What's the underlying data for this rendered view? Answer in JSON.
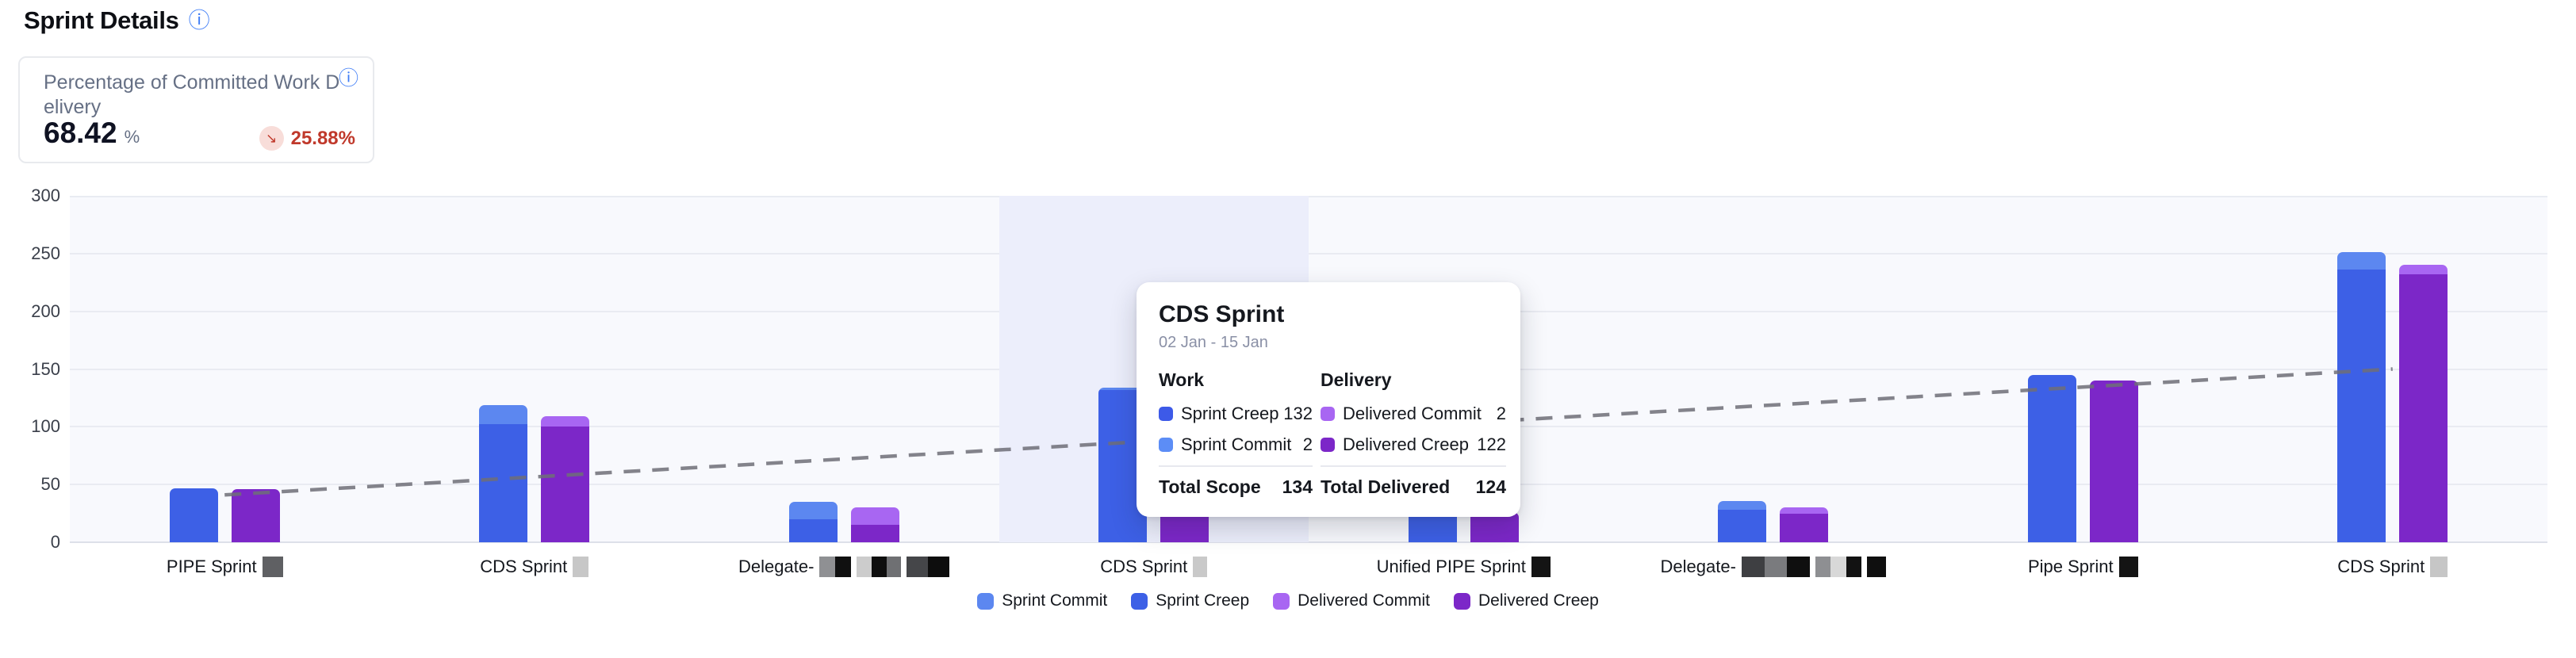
{
  "page": {
    "title": "Sprint Details"
  },
  "icons": {
    "info": "ⓘ",
    "trend_down_arrow": "↘"
  },
  "kpi_card": {
    "label": "Percentage of Committed Work Delivery",
    "value": "68.42",
    "unit": "%",
    "change": "25.88%",
    "trend": "down",
    "change_color": "#c0392b"
  },
  "tooltip": {
    "title": "CDS Sprint",
    "date_range": "02 Jan - 15 Jan",
    "work": {
      "header": "Work",
      "rows": [
        {
          "label": "Sprint Creep",
          "value": 132,
          "color": "#3d5ae8"
        },
        {
          "label": "Sprint Commit",
          "value": 2,
          "color": "#5c8df6"
        }
      ],
      "total_label": "Total Scope",
      "total_value": 134
    },
    "delivery": {
      "header": "Delivery",
      "rows": [
        {
          "label": "Delivered Commit",
          "value": 2,
          "color": "#a866f2"
        },
        {
          "label": "Delivered Creep",
          "value": 122,
          "color": "#7c27c8"
        }
      ],
      "total_label": "Total Delivered",
      "total_value": 124
    }
  },
  "chart_data": {
    "type": "bar",
    "stacked": true,
    "title": "Sprint Details",
    "xlabel": "",
    "ylabel": "",
    "ylim": [
      0,
      300
    ],
    "yticks": [
      300,
      250,
      200,
      150,
      100,
      50,
      0
    ],
    "grid": true,
    "legend_position": "bottom",
    "plot_bg": "#f8f9fd",
    "hover_band_color": "#eceefb",
    "hovered_index": 3,
    "categories": [
      {
        "label": "PIPE Sprint",
        "redaction_blocks": [
          {
            "width": 26,
            "colors": [
              "#5f6063"
            ]
          }
        ]
      },
      {
        "label": "CDS Sprint",
        "redaction_blocks": [
          {
            "width": 20,
            "colors": [
              "#c7c7c7"
            ]
          }
        ]
      },
      {
        "label": "Delegate-",
        "redaction_blocks": [
          {
            "width": 40,
            "colors": [
              "#8f9093",
              "#101010"
            ]
          },
          {
            "width": 56,
            "colors": [
              "#cccccc",
              "#0e0e0e",
              "#6f7073"
            ]
          },
          {
            "width": 54,
            "colors": [
              "#454649",
              "#0d0d0d"
            ]
          }
        ]
      },
      {
        "label": "CDS Sprint",
        "redaction_blocks": [
          {
            "width": 18,
            "colors": [
              "#c9c9c9"
            ]
          }
        ]
      },
      {
        "label": "Unified PIPE Sprint",
        "redaction_blocks": [
          {
            "width": 24,
            "colors": [
              "#141414"
            ]
          }
        ]
      },
      {
        "label": "Delegate-",
        "redaction_blocks": [
          {
            "width": 86,
            "colors": [
              "#3e3f42",
              "#7a7b7e",
              "#0f0f0f"
            ]
          },
          {
            "width": 58,
            "colors": [
              "#8e8f92",
              "#d8d8d8",
              "#121212"
            ]
          },
          {
            "width": 24,
            "colors": [
              "#0f0f0f"
            ]
          }
        ]
      },
      {
        "label": "Pipe Sprint",
        "redaction_blocks": [
          {
            "width": 24,
            "colors": [
              "#141414"
            ]
          }
        ]
      },
      {
        "label": "CDS Sprint",
        "redaction_blocks": [
          {
            "width": 22,
            "colors": [
              "#c6c6c6"
            ]
          }
        ]
      }
    ],
    "series": [
      {
        "name": "Sprint Commit",
        "color": "#5c87f0",
        "stack": "work",
        "values": [
          0,
          17,
          15,
          2,
          0,
          8,
          0,
          15
        ]
      },
      {
        "name": "Sprint Creep",
        "color": "#3d60e6",
        "stack": "work",
        "values": [
          47,
          102,
          20,
          132,
          29,
          28,
          145,
          236
        ]
      },
      {
        "name": "Delivered Commit",
        "color": "#a866f2",
        "stack": "delivery",
        "values": [
          0,
          9,
          15,
          2,
          0,
          5,
          0,
          8
        ]
      },
      {
        "name": "Delivered Creep",
        "color": "#7c27c8",
        "stack": "delivery",
        "values": [
          46,
          100,
          15,
          122,
          26,
          25,
          140,
          232
        ]
      }
    ],
    "trend_line": {
      "style": "dashed",
      "color": "#6f6f78",
      "start_value": 41,
      "end_value": 150
    }
  }
}
